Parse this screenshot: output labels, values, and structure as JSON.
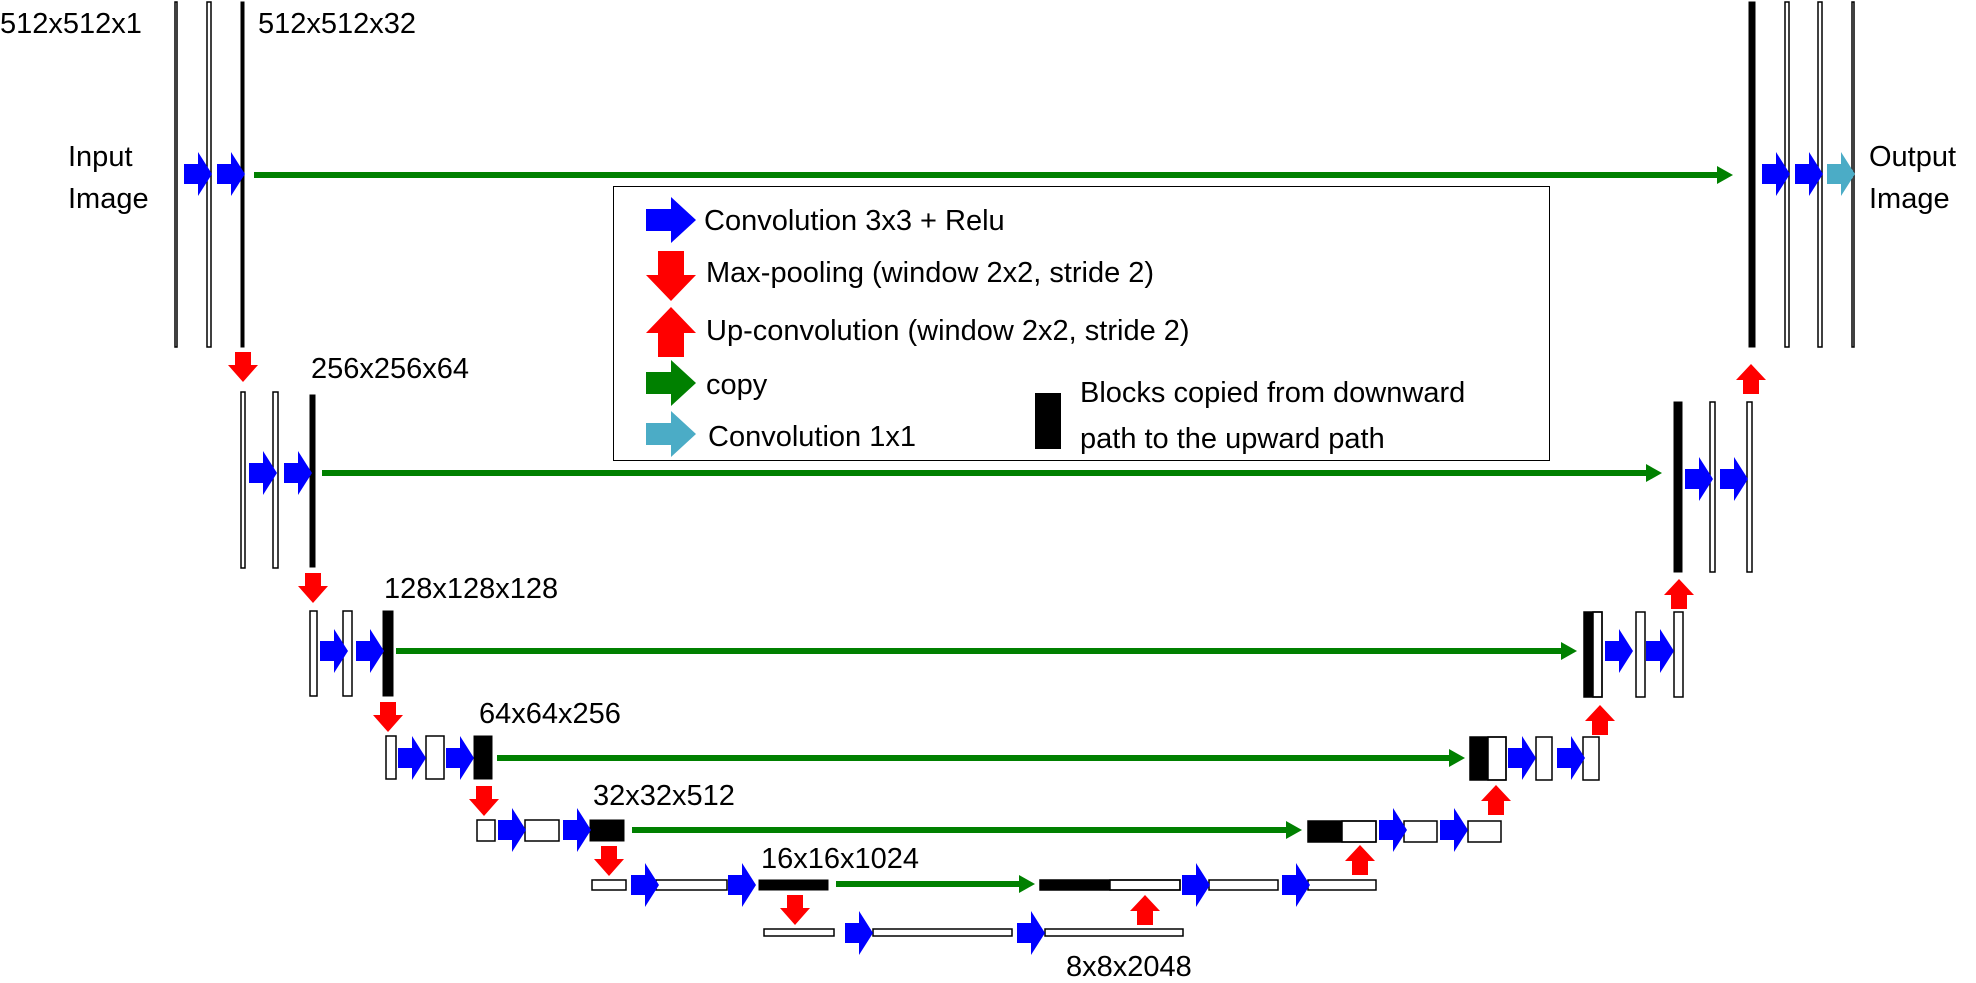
{
  "labels": {
    "input_size": "512x512x1",
    "first_features": "512x512x32",
    "level2": "256x256x64",
    "level3": "128x128x128",
    "level4": "64x64x256",
    "level5": "32x32x512",
    "level6": "16x16x1024",
    "bottleneck": "8x8x2048"
  },
  "input_label": [
    "Input",
    "Image"
  ],
  "output_label": [
    "Output",
    "Image"
  ],
  "legend": {
    "conv3x3": "Convolution 3x3 + Relu",
    "maxpool": "Max-pooling (window 2x2, stride 2)",
    "upconv": "Up-convolution (window 2x2, stride 2)",
    "copy": "copy",
    "conv1x1": "Convolution 1x1",
    "copied_blocks": [
      "Blocks copied from downward",
      "path to the upward path"
    ]
  },
  "colors": {
    "conv3x3": "#0000ff",
    "maxpool": "#ff0000",
    "upconv": "#ff0000",
    "copy": "#008000",
    "conv1x1": "#4bacc6",
    "copied_block": "#000000"
  }
}
